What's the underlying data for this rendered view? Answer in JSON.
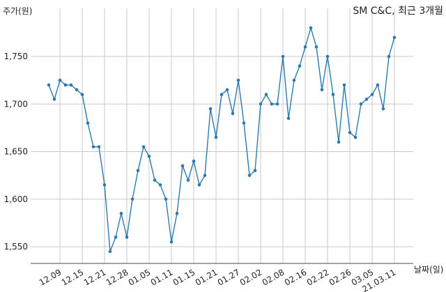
{
  "chart_data": {
    "type": "line",
    "title": "SM C&C, 최근 3개월",
    "ylabel": "주가(원)",
    "xlabel": "날짜(일)",
    "ylim": [
      1530,
      1790
    ],
    "yticks": [
      1550,
      1600,
      1650,
      1700,
      1750
    ],
    "ytick_labels": [
      "1,550",
      "1,600",
      "1,650",
      "1,700",
      "1,750"
    ],
    "xtick_labels": [
      "12.09",
      "12.15",
      "12.21",
      "12.28",
      "01.05",
      "01.11",
      "01.15",
      "01.21",
      "01.27",
      "02.02",
      "02.08",
      "02.16",
      "02.22",
      "02.26",
      "03.05",
      "21.03.11"
    ],
    "xtick_indices": [
      2,
      6,
      10,
      14,
      18,
      22,
      26,
      30,
      34,
      38,
      42,
      46,
      50,
      54,
      58,
      62
    ],
    "grid": true,
    "color": "#2a7ab0",
    "series": [
      {
        "values": [
          1720,
          1705,
          1725,
          1720,
          1720,
          1715,
          1710,
          1680,
          1655,
          1655,
          1615,
          1545,
          1560,
          1585,
          1560,
          1600,
          1630,
          1655,
          1645,
          1620,
          1615,
          1600,
          1555,
          1585,
          1635,
          1620,
          1640,
          1615,
          1625,
          1695,
          1665,
          1710,
          1715,
          1690,
          1725,
          1680,
          1625,
          1630,
          1700,
          1710,
          1700,
          1700,
          1750,
          1685,
          1725,
          1740,
          1760,
          1780,
          1760,
          1715,
          1750,
          1710,
          1660,
          1720,
          1670,
          1665,
          1700,
          1705,
          1710,
          1720,
          1695,
          1750,
          1770
        ]
      }
    ]
  }
}
